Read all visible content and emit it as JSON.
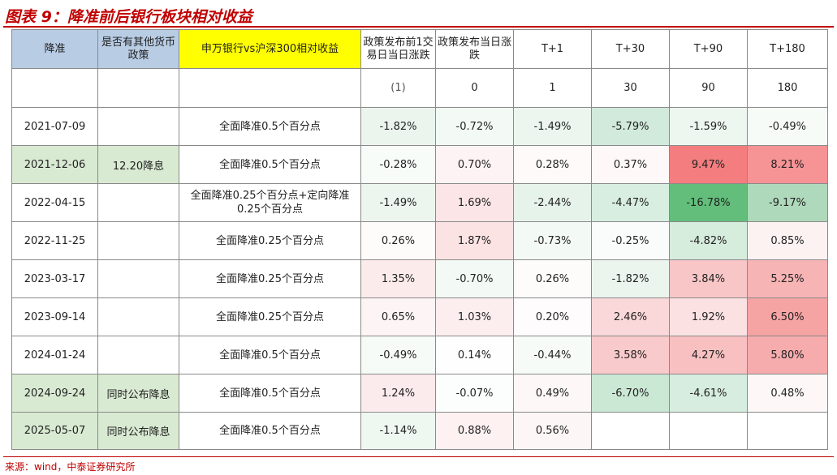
{
  "title": "图表 9：降准前后银行板块相对收益",
  "headers": {
    "col1": "降准",
    "col2": "是否有其他货币政策",
    "col3": "申万银行vs沪深300相对收益",
    "col4": "政策发布前1交易日当日涨跌",
    "col5": "政策发布当日涨跌",
    "col6": "T+1",
    "col7": "T+30",
    "col8": "T+90",
    "col9": "T+180"
  },
  "offsets": [
    "(1)",
    "0",
    "1",
    "30",
    "90",
    "180"
  ],
  "rows": [
    {
      "date": "2021-07-09",
      "other": "",
      "desc": "全面降准0.5个百分点",
      "vals": [
        "-1.82%",
        "-0.72%",
        "-1.49%",
        "-5.79%",
        "-1.59%",
        "-0.49%"
      ],
      "colors": [
        "#ebf5ee",
        "#f3f9f4",
        "#ecf6ef",
        "#d1eadb",
        "#edf6ef",
        "#f7fbf8"
      ]
    },
    {
      "date": "2021-12-06",
      "other": "12.20降息",
      "desc": "全面降准0.5个百分点",
      "vals": [
        "-0.28%",
        "0.70%",
        "0.28%",
        "0.37%",
        "9.47%",
        "8.21%"
      ],
      "colors": [
        "#f8fcf9",
        "#fdf3f4",
        "#fefafa",
        "#fef8f8",
        "#f47e7f",
        "#f69395"
      ]
    },
    {
      "date": "2022-04-15",
      "other": "",
      "desc": "全面降准0.25个百分点+定向降准0.25个百分点",
      "vals": [
        "-1.49%",
        "1.69%",
        "-2.44%",
        "-4.47%",
        "-16.78%",
        "-9.17%"
      ],
      "colors": [
        "#ecf6ef",
        "#fbe5e6",
        "#e6f3ea",
        "#d8eee0",
        "#63be7b",
        "#afd9bb"
      ]
    },
    {
      "date": "2022-11-25",
      "other": "",
      "desc": "全面降准0.25个百分点",
      "vals": [
        "0.26%",
        "1.87%",
        "-0.73%",
        "-0.25%",
        "-4.82%",
        "0.85%"
      ],
      "colors": [
        "#fefbfb",
        "#fbe2e3",
        "#f3f9f5",
        "#f9fcfa",
        "#d6ecdd",
        "#fdf2f2"
      ]
    },
    {
      "date": "2023-03-17",
      "other": "",
      "desc": "全面降准0.25个百分点",
      "vals": [
        "1.35%",
        "-0.70%",
        "0.26%",
        "-1.82%",
        "3.84%",
        "5.25%"
      ],
      "colors": [
        "#fcebeb",
        "#f3f9f5",
        "#fefbfb",
        "#ebf5ee",
        "#f9c6c7",
        "#f7b4b5"
      ]
    },
    {
      "date": "2023-09-14",
      "other": "",
      "desc": "全面降准0.25个百分点",
      "vals": [
        "0.65%",
        "1.03%",
        "0.20%",
        "2.46%",
        "1.92%",
        "6.50%"
      ],
      "colors": [
        "#fdf4f5",
        "#fceeef",
        "#fefcfc",
        "#fad7d8",
        "#fbe1e2",
        "#f6a3a4"
      ]
    },
    {
      "date": "2024-01-24",
      "other": "",
      "desc": "全面降准0.5个百分点",
      "vals": [
        "-0.49%",
        "0.14%",
        "-0.44%",
        "3.58%",
        "4.27%",
        "5.80%"
      ],
      "colors": [
        "#f6fbf7",
        "#fefefe",
        "#f6fbf8",
        "#f9cacb",
        "#f8c0c1",
        "#f6abad"
      ]
    },
    {
      "date": "2024-09-24",
      "other": "同时公布降息",
      "desc": "全面降准0.5个百分点",
      "vals": [
        "1.24%",
        "-0.07%",
        "0.49%",
        "-6.70%",
        "-4.61%",
        "0.48%"
      ],
      "colors": [
        "#fcebec",
        "#fcfefd",
        "#fdf7f7",
        "#cbe8d5",
        "#d7eddf",
        "#fdf7f7"
      ]
    },
    {
      "date": "2025-05-07",
      "other": "同时公布降息",
      "desc": "全面降准0.5个百分点",
      "vals": [
        "-1.14%",
        "0.88%",
        "0.56%",
        "",
        "",
        ""
      ],
      "colors": [
        "#eff7f1",
        "#fdf1f1",
        "#fdf6f6",
        "#ffffff",
        "#ffffff",
        "#ffffff"
      ]
    }
  ],
  "source": "来源：wind，中泰证券研究所"
}
